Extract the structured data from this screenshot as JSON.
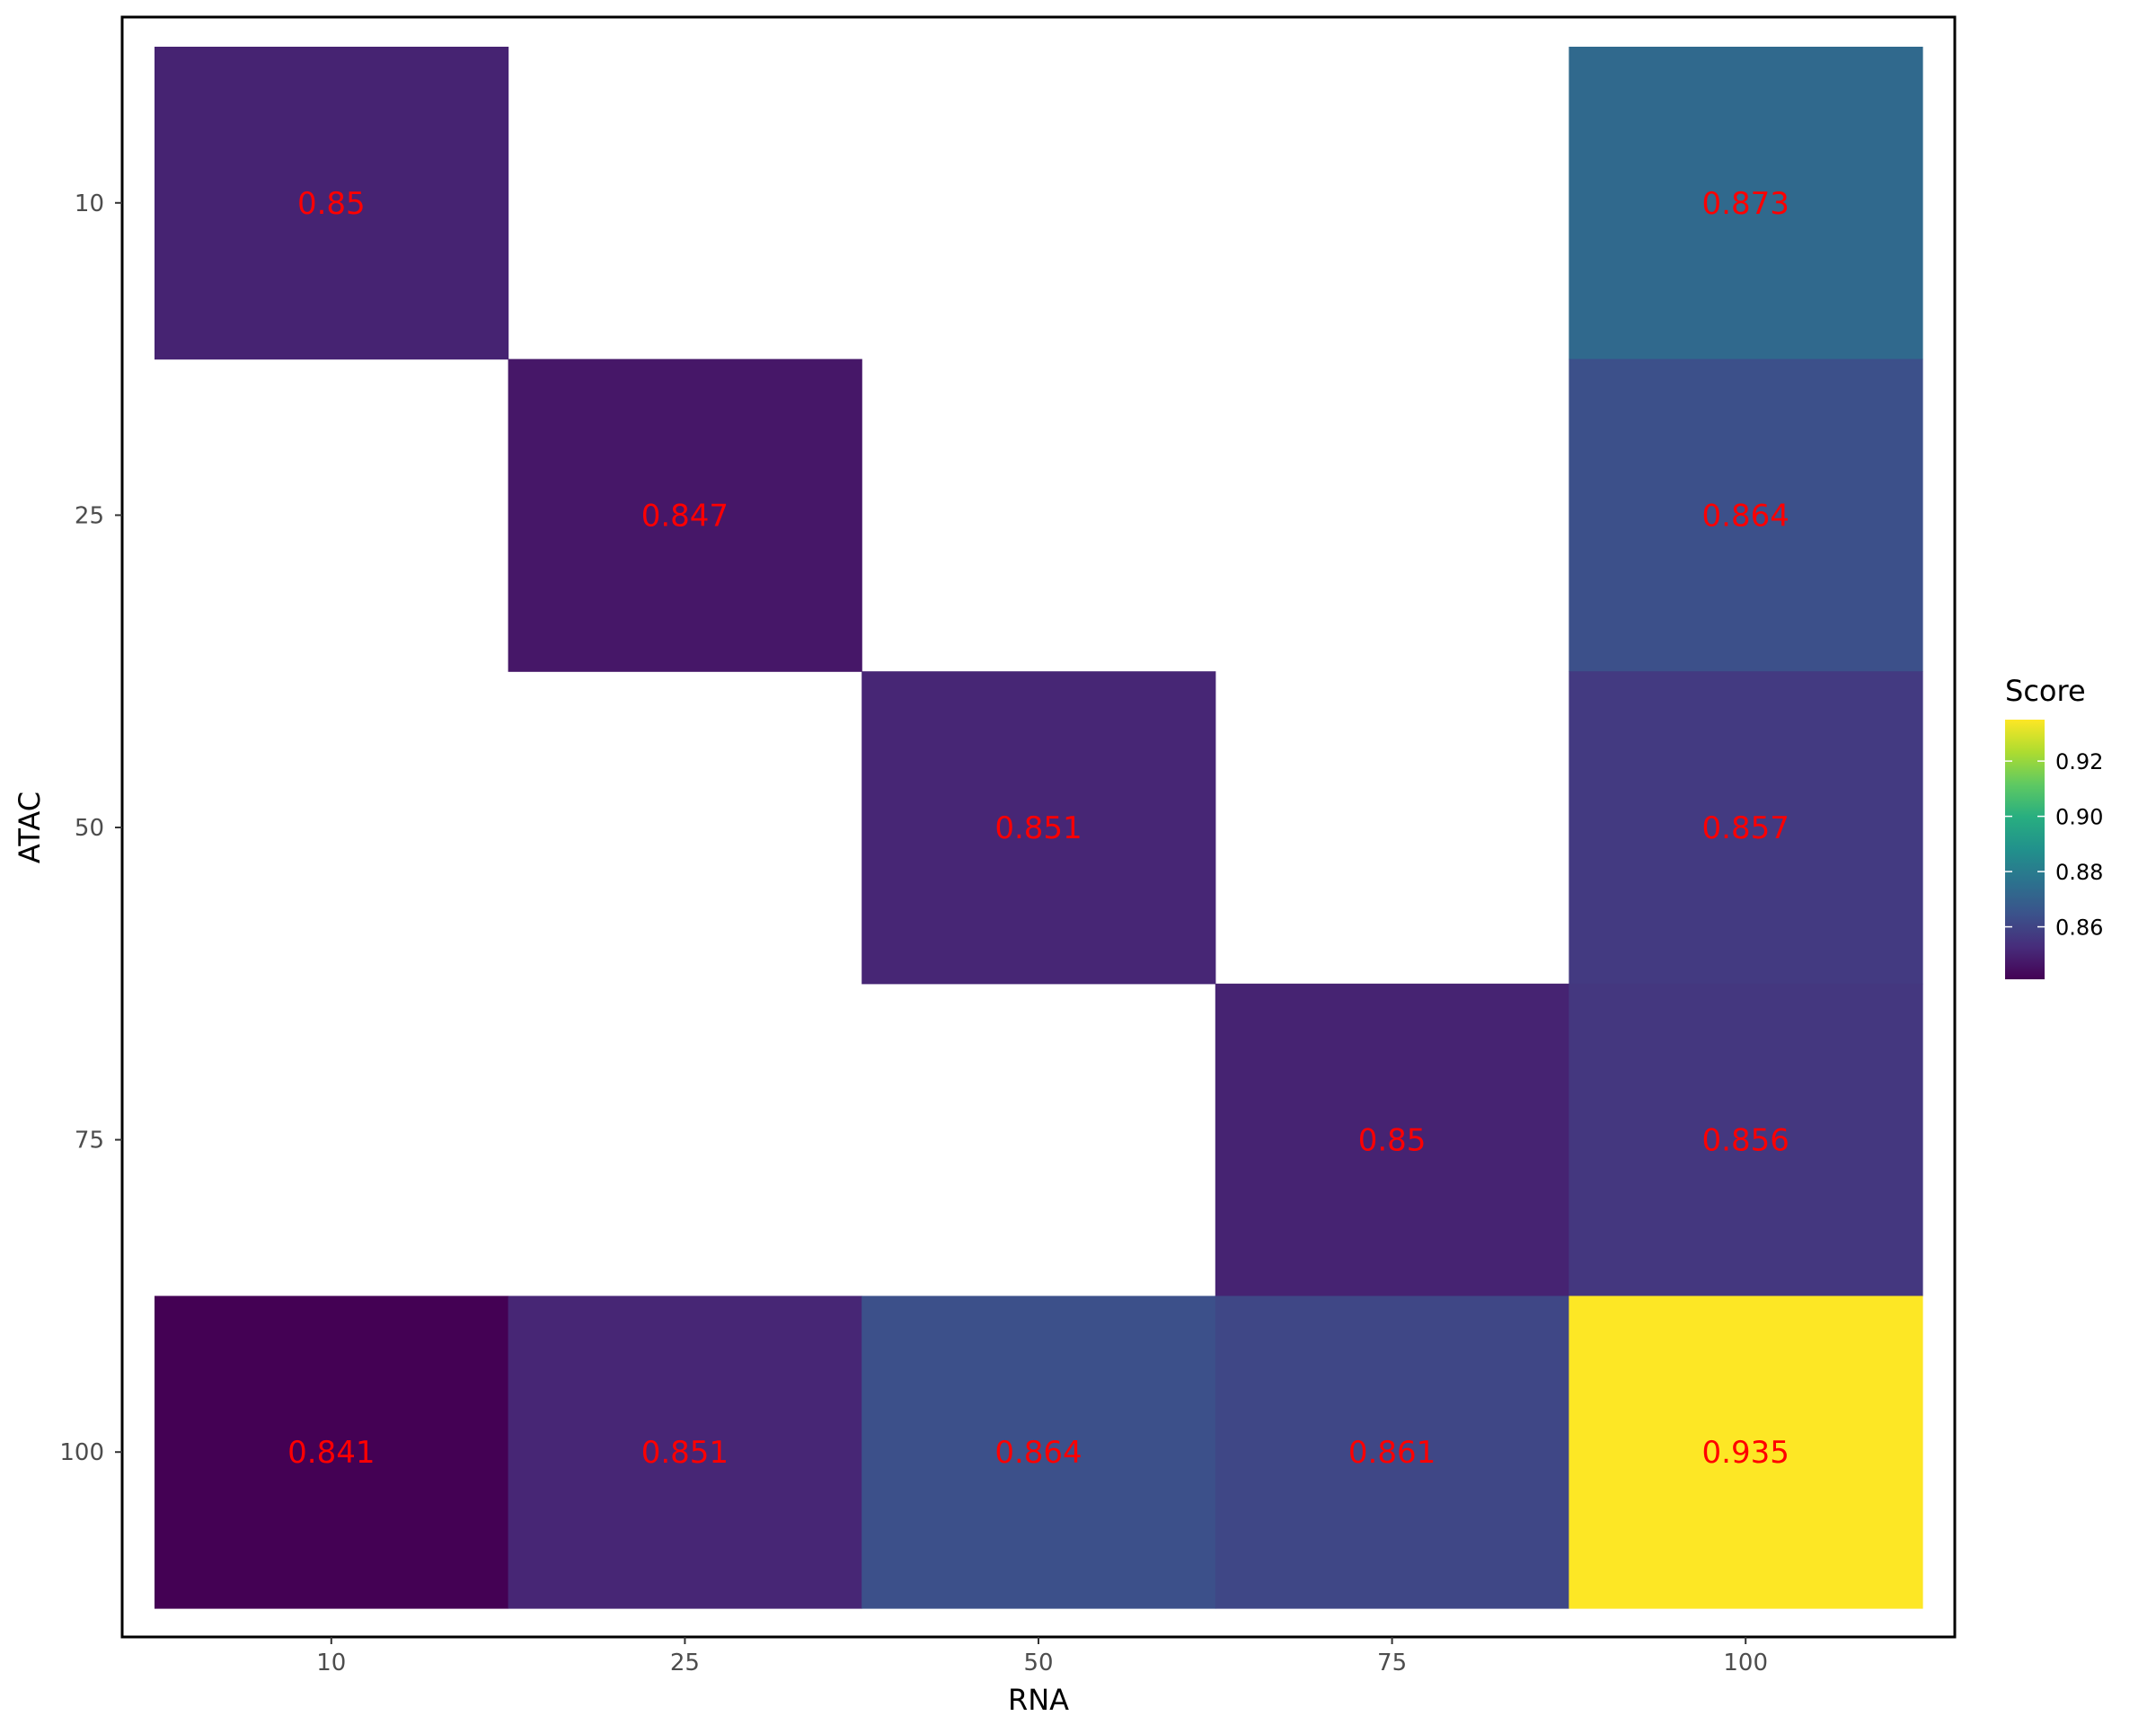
{
  "chart_data": {
    "type": "heatmap",
    "x_categories": [
      "10",
      "25",
      "50",
      "75",
      "100"
    ],
    "y_categories": [
      "10",
      "25",
      "50",
      "75",
      "100"
    ],
    "xlabel": "RNA",
    "ylabel": "ATAC",
    "cells": [
      {
        "x": "10",
        "y": "10",
        "value": 0.85,
        "label": "0.85"
      },
      {
        "x": "100",
        "y": "10",
        "value": 0.873,
        "label": "0.873"
      },
      {
        "x": "25",
        "y": "25",
        "value": 0.847,
        "label": "0.847"
      },
      {
        "x": "100",
        "y": "25",
        "value": 0.864,
        "label": "0.864"
      },
      {
        "x": "50",
        "y": "50",
        "value": 0.851,
        "label": "0.851"
      },
      {
        "x": "100",
        "y": "50",
        "value": 0.857,
        "label": "0.857"
      },
      {
        "x": "75",
        "y": "75",
        "value": 0.85,
        "label": "0.85"
      },
      {
        "x": "100",
        "y": "75",
        "value": 0.856,
        "label": "0.856"
      },
      {
        "x": "10",
        "y": "100",
        "value": 0.841,
        "label": "0.841"
      },
      {
        "x": "25",
        "y": "100",
        "value": 0.851,
        "label": "0.851"
      },
      {
        "x": "50",
        "y": "100",
        "value": 0.864,
        "label": "0.864"
      },
      {
        "x": "75",
        "y": "100",
        "value": 0.861,
        "label": "0.861"
      },
      {
        "x": "100",
        "y": "100",
        "value": 0.935,
        "label": "0.935"
      }
    ],
    "legend": {
      "title": "Score",
      "position": "right",
      "range": [
        0.841,
        0.935
      ],
      "breaks": [
        0.86,
        0.88,
        0.9,
        0.92
      ],
      "break_labels": [
        "0.86",
        "0.88",
        "0.90",
        "0.92"
      ],
      "palette": "viridis"
    },
    "label_color": "#ff0000",
    "grid": false
  }
}
